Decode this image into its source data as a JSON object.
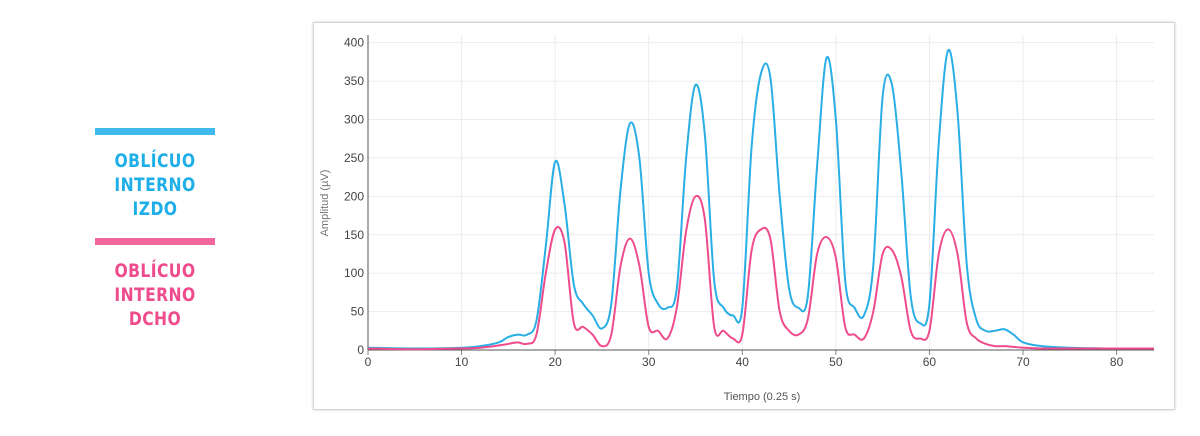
{
  "legend": [
    {
      "line1": "OBLÍCUO INTERNO",
      "line2": "IZDO",
      "color": "#1eaee8"
    },
    {
      "line1": "OBLÍCUO INTERNO",
      "line2": "DCHO",
      "color": "#ee4c8c"
    }
  ],
  "chart_data": {
    "type": "line",
    "xlabel": "Tiempo (0.25 s)",
    "ylabel": "Amplitud (µV)",
    "xlim": [
      0,
      84
    ],
    "ylim": [
      0,
      410
    ],
    "xticks": [
      0,
      10,
      20,
      30,
      40,
      50,
      60,
      70,
      80
    ],
    "yticks": [
      0,
      50,
      100,
      150,
      200,
      250,
      300,
      350,
      400
    ],
    "grid": true,
    "series": [
      {
        "color": "#29aee6",
        "x": [
          0,
          5,
          10,
          12,
          14,
          15,
          16,
          17,
          18,
          19,
          20,
          21,
          22,
          23,
          24,
          25,
          26,
          27,
          28,
          29,
          30,
          31,
          32,
          33,
          34,
          35,
          36,
          37,
          38,
          39,
          40,
          41,
          42,
          43,
          44,
          45,
          46,
          47,
          48,
          49,
          50,
          51,
          52,
          53,
          54,
          55,
          56,
          57,
          58,
          59,
          60,
          61,
          62,
          63,
          64,
          65,
          66,
          67,
          68,
          69,
          70,
          72,
          75,
          80,
          84
        ],
        "y": [
          3,
          2,
          3,
          5,
          10,
          17,
          20,
          20,
          38,
          135,
          245,
          190,
          85,
          60,
          45,
          28,
          60,
          210,
          295,
          250,
          100,
          60,
          55,
          80,
          250,
          345,
          280,
          90,
          55,
          45,
          55,
          265,
          360,
          355,
          200,
          80,
          55,
          70,
          240,
          380,
          300,
          90,
          55,
          45,
          110,
          330,
          345,
          230,
          70,
          35,
          60,
          270,
          390,
          310,
          110,
          40,
          25,
          25,
          27,
          20,
          10,
          5,
          3,
          2,
          2
        ]
      },
      {
        "color": "#ee4c8c",
        "x": [
          0,
          5,
          10,
          12,
          14,
          15,
          16,
          17,
          18,
          19,
          20,
          21,
          22,
          23,
          24,
          25,
          26,
          27,
          28,
          29,
          30,
          31,
          32,
          33,
          34,
          35,
          36,
          37,
          38,
          39,
          40,
          41,
          42,
          43,
          44,
          45,
          46,
          47,
          48,
          49,
          50,
          51,
          52,
          53,
          54,
          55,
          56,
          57,
          58,
          59,
          60,
          61,
          62,
          63,
          64,
          65,
          66,
          67,
          68,
          69,
          70,
          72,
          75,
          80,
          84
        ],
        "y": [
          2,
          1,
          2,
          3,
          6,
          8,
          10,
          8,
          20,
          100,
          157,
          140,
          35,
          30,
          20,
          5,
          20,
          110,
          145,
          110,
          30,
          25,
          15,
          55,
          155,
          200,
          170,
          30,
          25,
          15,
          20,
          130,
          157,
          145,
          50,
          25,
          20,
          40,
          125,
          147,
          120,
          30,
          20,
          15,
          50,
          125,
          130,
          95,
          25,
          15,
          25,
          125,
          157,
          125,
          35,
          15,
          8,
          5,
          5,
          4,
          3,
          2,
          2,
          2,
          2
        ]
      }
    ]
  }
}
